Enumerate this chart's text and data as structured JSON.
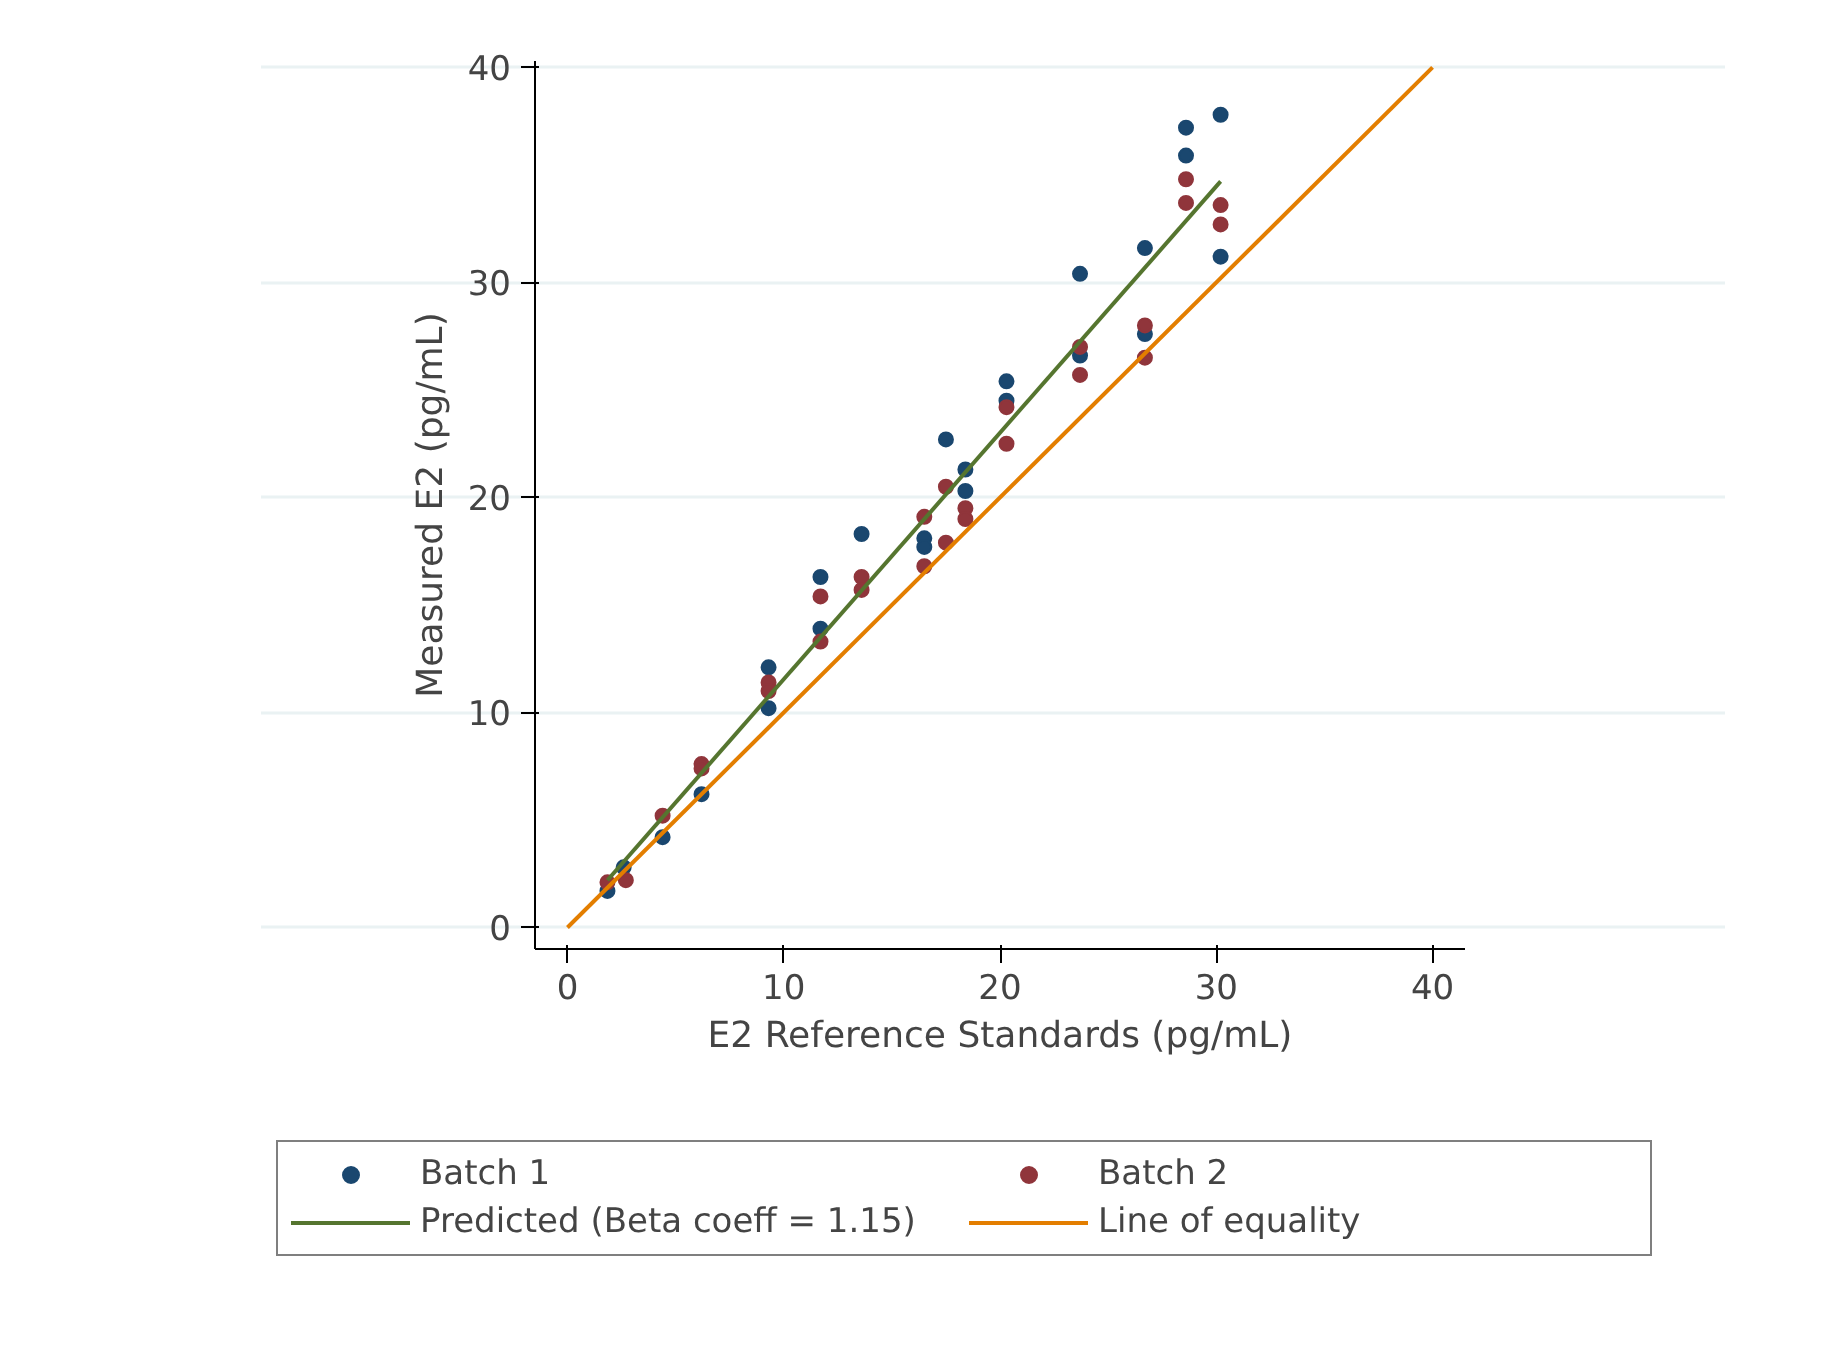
{
  "chart_data": {
    "type": "scatter",
    "xlabel": "E2 Reference Standards (pg/mL)",
    "ylabel": "Measured E2 (pg/mL)",
    "xlim": [
      -1.5,
      41.5
    ],
    "ylim": [
      -1,
      40.3
    ],
    "xticks": [
      0,
      10,
      20,
      30,
      40
    ],
    "yticks": [
      0,
      10,
      20,
      30,
      40
    ],
    "grid": "y",
    "legend": "bottom",
    "series": [
      {
        "name": "Batch 1",
        "color": "#1a476f",
        "marker": "circle",
        "x": [
          1.85,
          2.6,
          4.4,
          6.2,
          9.3,
          9.3,
          11.7,
          11.7,
          13.6,
          16.5,
          16.5,
          17.5,
          18.4,
          18.4,
          20.3,
          20.3,
          23.7,
          23.7,
          26.7,
          26.7,
          28.6,
          28.6,
          30.2,
          30.2
        ],
        "values": [
          1.7,
          2.8,
          4.2,
          6.2,
          12.1,
          10.2,
          16.3,
          13.9,
          18.3,
          18.1,
          17.7,
          22.7,
          21.3,
          20.3,
          25.4,
          24.5,
          30.4,
          26.6,
          31.6,
          27.6,
          37.2,
          35.9,
          37.8,
          31.2
        ]
      },
      {
        "name": "Batch 2",
        "color": "#90353b",
        "marker": "circle",
        "x": [
          1.85,
          2.7,
          4.4,
          6.2,
          6.2,
          9.3,
          9.3,
          11.7,
          11.7,
          13.6,
          13.6,
          16.5,
          16.5,
          17.5,
          17.5,
          18.4,
          18.4,
          20.3,
          20.3,
          23.7,
          23.7,
          26.7,
          26.7,
          28.6,
          28.6,
          30.2,
          30.2
        ],
        "values": [
          2.1,
          2.2,
          5.2,
          7.6,
          7.4,
          11.4,
          11.0,
          15.4,
          13.3,
          16.3,
          15.7,
          19.1,
          16.8,
          20.5,
          17.9,
          19.5,
          19.0,
          24.2,
          22.5,
          27.0,
          25.7,
          28.0,
          26.5,
          34.8,
          33.7,
          33.6,
          32.7
        ]
      },
      {
        "name": "Predicted (Beta coeff = 1.15)",
        "type": "line",
        "color": "#55752f",
        "marker": "none",
        "x": [
          1.85,
          30.2
        ],
        "values": [
          2.2,
          34.7
        ]
      },
      {
        "name": "Line of equality",
        "type": "line",
        "color": "#e37e00",
        "marker": "none",
        "x": [
          0,
          40
        ],
        "values": [
          0,
          40
        ]
      }
    ]
  }
}
